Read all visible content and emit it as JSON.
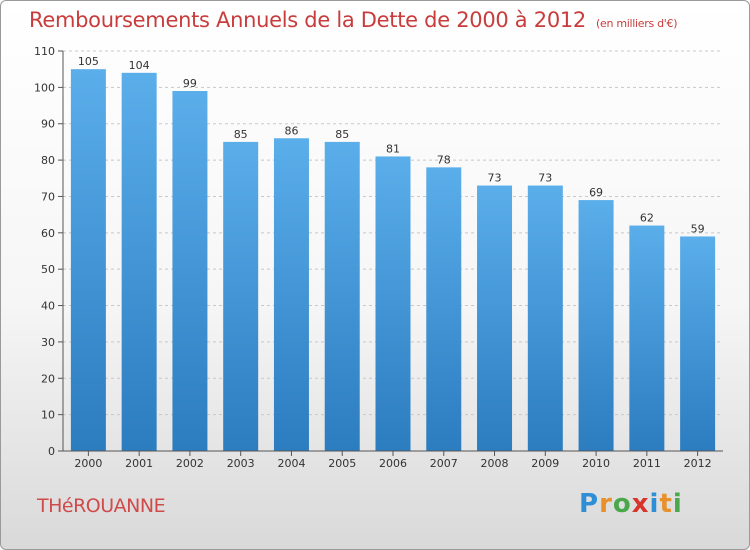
{
  "chart_data": {
    "type": "bar",
    "title": "Remboursements Annuels de la Dette de 2000 à 2012",
    "subtitle": "(en milliers d'€)",
    "categories": [
      "2000",
      "2001",
      "2002",
      "2003",
      "2004",
      "2005",
      "2006",
      "2007",
      "2008",
      "2009",
      "2010",
      "2011",
      "2012"
    ],
    "values": [
      105,
      104,
      99,
      85,
      86,
      85,
      81,
      78,
      73,
      73,
      69,
      62,
      59
    ],
    "ylim": [
      0,
      110
    ],
    "yticks": [
      0,
      10,
      20,
      30,
      40,
      50,
      60,
      70,
      80,
      90,
      100,
      110
    ],
    "grid": true,
    "bar_color_top": "#5aaeea",
    "bar_color_bottom": "#2c7cc0"
  },
  "footer": {
    "city": "THéROUANNE",
    "logo": "Proxiti",
    "logo_colors": [
      "#2f8fd6",
      "#e8902a",
      "#4aa84a",
      "#d8342c",
      "#2f8fd6",
      "#e8902a",
      "#4aa84a"
    ]
  }
}
